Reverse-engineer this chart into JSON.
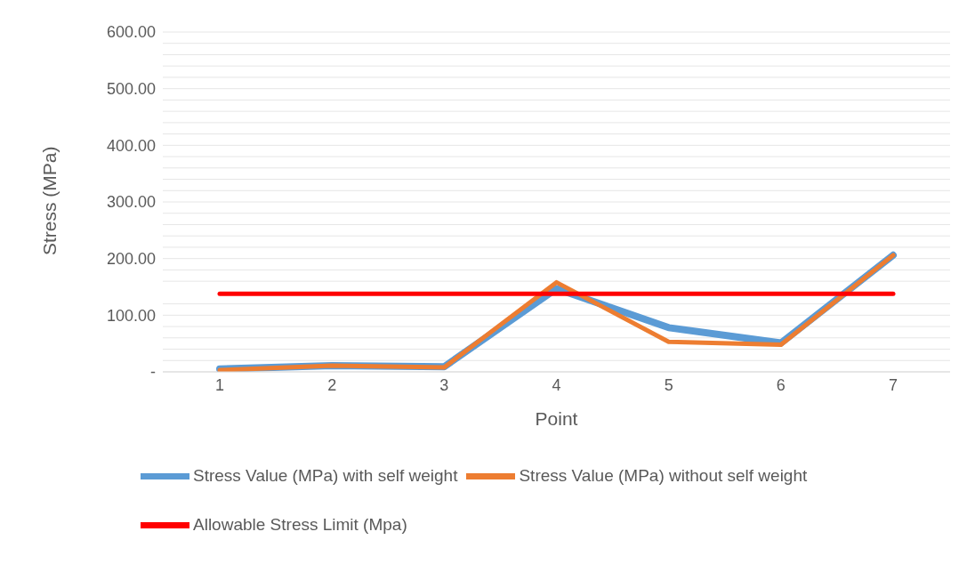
{
  "chart_data": {
    "type": "line",
    "xlabel": "Point",
    "ylabel": "Stress (MPa)",
    "categories": [
      "1",
      "2",
      "3",
      "4",
      "5",
      "6",
      "7"
    ],
    "series": [
      {
        "name": "Stress Value (MPa) with self weight",
        "color": "#5b9bd5",
        "values": [
          5,
          11,
          9,
          147,
          78,
          51,
          206
        ]
      },
      {
        "name": "Stress Value (MPa) without self weight",
        "color": "#ed7d31",
        "values": [
          3,
          11,
          8,
          158,
          53,
          48,
          206
        ]
      },
      {
        "name": "Allowable Stress Limit (Mpa)",
        "color": "#ff0000",
        "values": [
          138,
          138,
          138,
          138,
          138,
          138,
          138
        ]
      }
    ],
    "ylim": [
      0,
      600
    ],
    "yticks": [
      {
        "value": 0,
        "label": "-"
      },
      {
        "value": 20,
        "label": null
      },
      {
        "value": 40,
        "label": null
      },
      {
        "value": 60,
        "label": null
      },
      {
        "value": 80,
        "label": null
      },
      {
        "value": 100,
        "label": "100.00"
      },
      {
        "value": 120,
        "label": null
      },
      {
        "value": 160,
        "label": null
      },
      {
        "value": 180,
        "label": null
      },
      {
        "value": 200,
        "label": "200.00"
      },
      {
        "value": 220,
        "label": null
      },
      {
        "value": 240,
        "label": null
      },
      {
        "value": 260,
        "label": null
      },
      {
        "value": 280,
        "label": null
      },
      {
        "value": 300,
        "label": "300.00"
      },
      {
        "value": 320,
        "label": null
      },
      {
        "value": 340,
        "label": null
      },
      {
        "value": 360,
        "label": null
      },
      {
        "value": 380,
        "label": null
      },
      {
        "value": 400,
        "label": "400.00"
      },
      {
        "value": 420,
        "label": null
      },
      {
        "value": 440,
        "label": null
      },
      {
        "value": 460,
        "label": null
      },
      {
        "value": 480,
        "label": null
      },
      {
        "value": 500,
        "label": "500.00"
      },
      {
        "value": 520,
        "label": null
      },
      {
        "value": 540,
        "label": null
      },
      {
        "value": 560,
        "label": null
      },
      {
        "value": 580,
        "label": null
      },
      {
        "value": 600,
        "label": "600.00"
      }
    ],
    "grid": true,
    "legend": "bottom",
    "marker": "none",
    "line_style": "solid"
  }
}
